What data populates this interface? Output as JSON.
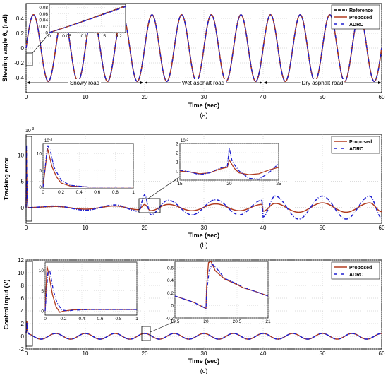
{
  "chart_data": [
    {
      "type": "line",
      "panel_label": "(a)",
      "xlabel": "Time (sec)",
      "ylabel": "Steering angle θ",
      "ylabel_sub": "s",
      "ylabel_unit": "(rad)",
      "xlim": [
        0,
        60
      ],
      "ylim": [
        -0.6,
        0.6
      ],
      "xticks": [
        "0",
        "10",
        "20",
        "30",
        "40",
        "50",
        "60"
      ],
      "yticks": [
        "-0.4",
        "-0.2",
        "0",
        "0.2",
        "0.4"
      ],
      "grid": true,
      "legend_position": "top-right",
      "signal": {
        "amplitude": 0.45,
        "period_sec": 5,
        "phase": "sine"
      },
      "series": [
        {
          "name": "Reference",
          "style": "dashed",
          "color": "#000000"
        },
        {
          "name": "Proposed",
          "style": "solid",
          "color": "#b03a1f"
        },
        {
          "name": "ADRC",
          "style": "dash-dot",
          "color": "#1f1fd0"
        }
      ],
      "annotations": [
        {
          "text": "Snowy road",
          "x_from": 0,
          "x_to": 20
        },
        {
          "text": "Wet asphalt road",
          "x_from": 20,
          "x_to": 40
        },
        {
          "text": "Dry asphalt road",
          "x_from": 40,
          "x_to": 60
        }
      ],
      "inset": {
        "xlim": [
          0,
          0.22
        ],
        "ylim": [
          0,
          0.09
        ],
        "xticks": [
          "0",
          "0.05",
          "0.1",
          "0.15",
          "0.2"
        ],
        "yticks": [
          "0",
          "0.02",
          "0.04",
          "0.06",
          "0.08"
        ],
        "x": [
          0,
          0.05,
          0.1,
          0.15,
          0.2,
          0.22
        ],
        "y": [
          0,
          0.018,
          0.037,
          0.057,
          0.077,
          0.085
        ]
      }
    },
    {
      "type": "line",
      "panel_label": "(b)",
      "xlabel": "Time (sec)",
      "ylabel": "Tracking error",
      "y_exponent": "10",
      "y_exponent_power": "-3",
      "xlim": [
        0,
        60
      ],
      "ylim": [
        -3,
        14
      ],
      "xticks": [
        "0",
        "10",
        "20",
        "30",
        "40",
        "50",
        "60"
      ],
      "yticks": [
        "0",
        "5",
        "10"
      ],
      "grid": true,
      "legend_position": "top-right",
      "series": [
        {
          "name": "Proposed",
          "style": "solid",
          "color": "#b03a1f",
          "x": [
            0,
            0.05,
            0.1,
            0.2,
            0.3,
            5,
            10,
            15,
            19,
            20,
            21,
            24,
            28,
            32,
            36,
            39.8,
            40,
            42,
            46,
            50,
            54,
            58,
            60
          ],
          "y": [
            0,
            11,
            6,
            1.5,
            0,
            0.2,
            -0.3,
            0.3,
            -0.4,
            0.6,
            -0.6,
            0.6,
            -0.6,
            0.7,
            -0.6,
            0.6,
            -0.7,
            0.8,
            -0.9,
            0.9,
            -0.9,
            0.9,
            -0.8
          ]
        },
        {
          "name": "ADRC",
          "style": "dash-dot",
          "color": "#1f1fd0",
          "x": [
            0,
            0.05,
            0.1,
            0.2,
            0.3,
            5,
            10,
            15,
            19,
            20,
            21,
            24,
            28,
            32,
            36,
            39.8,
            40,
            42,
            46,
            50,
            54,
            58,
            60
          ],
          "y": [
            0,
            12,
            7,
            2,
            0,
            0.3,
            -0.5,
            0.5,
            -0.7,
            2.5,
            -1.4,
            1.4,
            -1.4,
            1.5,
            -1.4,
            1.4,
            -1.8,
            2.2,
            -2.2,
            2.2,
            -2.2,
            2.2,
            -2.0
          ]
        }
      ],
      "insets": [
        {
          "xlim": [
            0,
            1
          ],
          "ylim": [
            -0.5,
            13
          ],
          "xticks": [
            "0",
            "0.2",
            "0.4",
            "0.6",
            "0.8",
            "1"
          ],
          "yticks": [
            "0",
            "5",
            "10"
          ],
          "exponent": "10",
          "exponent_power": "-3",
          "proposed": {
            "x": [
              0,
              0.05,
              0.1,
              0.15,
              0.2,
              0.3,
              0.5,
              1
            ],
            "y": [
              0,
              11.5,
              6,
              3,
              1.2,
              0.3,
              0,
              0
            ]
          },
          "adrc": {
            "x": [
              0,
              0.05,
              0.08,
              0.12,
              0.2,
              0.3,
              0.5,
              1
            ],
            "y": [
              0,
              12.5,
              11,
              6,
              2,
              0.5,
              0,
              0
            ]
          }
        },
        {
          "xlim": [
            15,
            25
          ],
          "ylim": [
            -1,
            3
          ],
          "xticks": [
            "15",
            "20",
            "25"
          ],
          "yticks": [
            "-1",
            "0",
            "1",
            "2",
            "3"
          ],
          "exponent": "10",
          "exponent_power": "-3",
          "proposed": {
            "x": [
              15,
              16,
              17,
              18,
              19,
              19.8,
              20,
              20.5,
              21,
              22,
              23,
              24,
              25
            ],
            "y": [
              0,
              -0.1,
              -0.3,
              -0.2,
              0.2,
              0.4,
              1.2,
              0.3,
              -0.2,
              -0.4,
              -0.3,
              0.1,
              0.4
            ]
          },
          "adrc": {
            "x": [
              15,
              16,
              17,
              18,
              19,
              19.8,
              20,
              20.3,
              21,
              22,
              23,
              24,
              25
            ],
            "y": [
              0.1,
              -0.1,
              -0.4,
              -0.2,
              0.3,
              0.5,
              2.5,
              1.0,
              0,
              -0.8,
              -0.9,
              -0.2,
              0.8
            ]
          }
        }
      ]
    },
    {
      "type": "line",
      "panel_label": "(c)",
      "xlabel": "Time (sec)",
      "ylabel": "Control input (V)",
      "xlim": [
        0,
        60
      ],
      "ylim": [
        -2,
        12
      ],
      "xticks": [
        "0",
        "10",
        "20",
        "30",
        "40",
        "50",
        "60"
      ],
      "yticks": [
        "-2",
        "0",
        "2",
        "4",
        "6",
        "8",
        "10",
        "12"
      ],
      "grid": true,
      "legend_position": "top-right",
      "signal": {
        "amplitude": 0.45,
        "period_sec": 5,
        "phase": "cosine"
      },
      "series": [
        {
          "name": "Proposed",
          "style": "solid",
          "color": "#b03a1f"
        },
        {
          "name": "ADRC",
          "style": "dash-dot",
          "color": "#1f1fd0"
        }
      ],
      "insets": [
        {
          "xlim": [
            0,
            1
          ],
          "ylim": [
            -1,
            12
          ],
          "xticks": [
            "0",
            "0.2",
            "0.4",
            "0.6",
            "0.8",
            "1"
          ],
          "yticks": [
            "0",
            "5",
            "10"
          ],
          "proposed": {
            "x": [
              0,
              0.02,
              0.04,
              0.08,
              0.12,
              0.16,
              0.2,
              0.3,
              0.5,
              1
            ],
            "y": [
              0,
              11,
              9,
              4,
              1,
              -0.3,
              0,
              0.3,
              0.4,
              0.4
            ]
          },
          "adrc": {
            "x": [
              0,
              0.03,
              0.05,
              0.09,
              0.13,
              0.18,
              0.25,
              0.3,
              0.5,
              1
            ],
            "y": [
              0,
              9.5,
              10,
              5,
              2,
              0.3,
              0,
              0.2,
              0.4,
              0.4
            ]
          }
        },
        {
          "xlim": [
            19.5,
            21
          ],
          "ylim": [
            -0.2,
            0.7
          ],
          "xticks": [
            "19.5",
            "20",
            "20.5",
            "21"
          ],
          "yticks": [
            "-0.2",
            "0",
            "0.2",
            "0.4",
            "0.6"
          ],
          "proposed": {
            "x": [
              19.5,
              19.8,
              20,
              20.01,
              20.04,
              20.08,
              20.15,
              20.3,
              20.5,
              20.6,
              20.8,
              21
            ],
            "y": [
              0.15,
              0.05,
              -0.05,
              0.3,
              0.68,
              0.7,
              0.55,
              0.42,
              0.33,
              0.28,
              0.22,
              0.15
            ]
          },
          "adrc": {
            "x": [
              19.5,
              19.8,
              20,
              20.01,
              20.05,
              20.1,
              20.18,
              20.3,
              20.5,
              20.6,
              20.8,
              21
            ],
            "y": [
              0.15,
              0.05,
              -0.05,
              0.2,
              0.55,
              0.66,
              0.58,
              0.43,
              0.34,
              0.29,
              0.22,
              0.15
            ]
          }
        }
      ]
    }
  ]
}
